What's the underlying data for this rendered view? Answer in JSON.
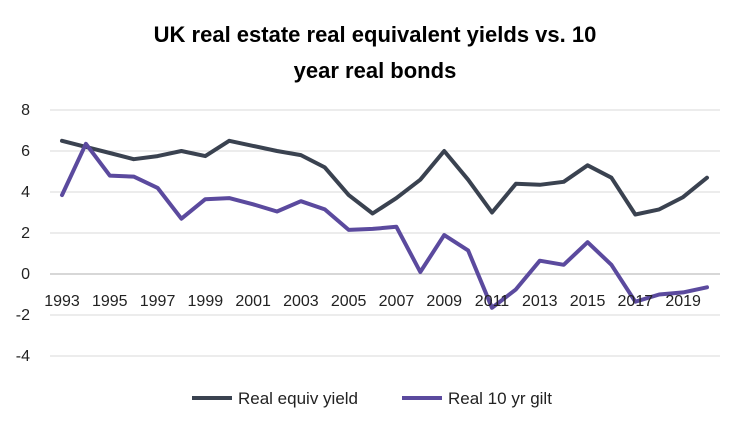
{
  "chart_data": {
    "type": "line",
    "title_lines": [
      "UK real estate real equivalent yields vs. 10",
      "year real bonds"
    ],
    "xlabel": "",
    "ylabel": "",
    "ylim": [
      -4,
      8
    ],
    "yticks": [
      "8",
      "6",
      "4",
      "2",
      "0",
      "-2",
      "-4"
    ],
    "xticks": [
      "1993",
      "1995",
      "1997",
      "1999",
      "2001",
      "2003",
      "2005",
      "2007",
      "2009",
      "2011",
      "2013",
      "2015",
      "2017",
      "2019"
    ],
    "x": [
      1993,
      1994,
      1995,
      1996,
      1997,
      1998,
      1999,
      2000,
      2001,
      2002,
      2003,
      2004,
      2005,
      2006,
      2007,
      2008,
      2009,
      2010,
      2011,
      2012,
      2013,
      2014,
      2015,
      2016,
      2017,
      2018,
      2019,
      2020
    ],
    "grid": "horizontal",
    "legend_position": "bottom",
    "series": [
      {
        "name": "Real equiv yield",
        "color": "#3a4250",
        "values": [
          6.5,
          6.2,
          5.9,
          5.6,
          5.75,
          6.0,
          5.75,
          6.5,
          6.25,
          6.0,
          5.8,
          5.2,
          3.85,
          2.95,
          3.7,
          4.6,
          6.0,
          4.6,
          3.0,
          4.4,
          4.35,
          4.5,
          5.3,
          4.7,
          2.9,
          3.15,
          3.75,
          4.7
        ]
      },
      {
        "name": "Real 10 yr gilt",
        "color": "#5b4a9e",
        "values": [
          3.85,
          6.35,
          4.8,
          4.75,
          4.2,
          2.7,
          3.65,
          3.7,
          3.4,
          3.05,
          3.55,
          3.15,
          2.15,
          2.2,
          2.3,
          0.1,
          1.9,
          1.15,
          -1.65,
          -0.75,
          0.65,
          0.45,
          1.55,
          0.45,
          -1.35,
          -1.0,
          -0.9,
          -0.65
        ]
      }
    ]
  }
}
